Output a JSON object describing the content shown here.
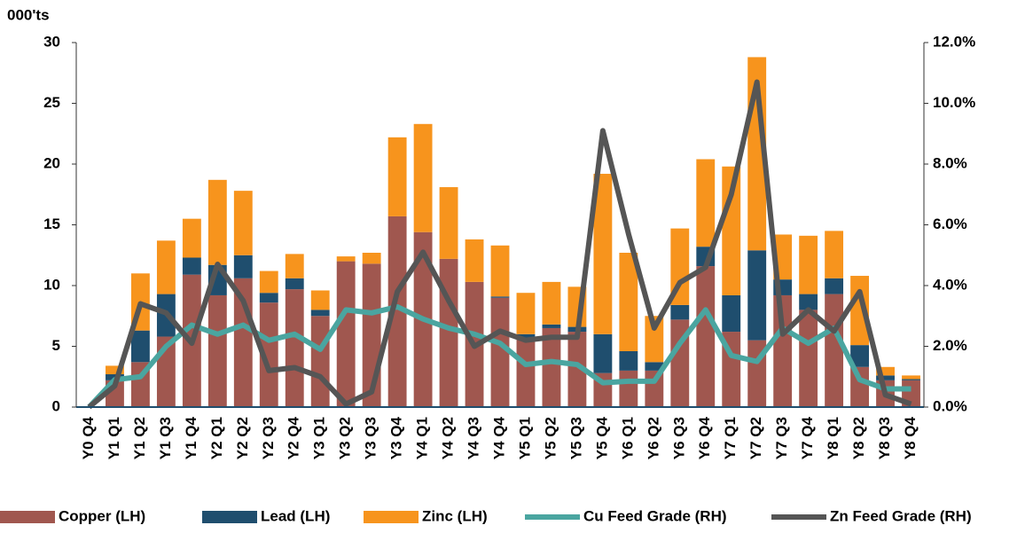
{
  "chart_data": {
    "type": "bar",
    "stacked": true,
    "y_axis_label": "000'ts",
    "categories": [
      "Y0 Q4",
      "Y1 Q1",
      "Y1 Q2",
      "Y1 Q3",
      "Y1 Q4",
      "Y2 Q1",
      "Y2 Q2",
      "Y2 Q3",
      "Y2 Q4",
      "Y3 Q1",
      "Y3 Q2",
      "Y3 Q3",
      "Y3 Q4",
      "Y4 Q1",
      "Y4 Q2",
      "Y4 Q3",
      "Y4 Q4",
      "Y5 Q1",
      "Y5 Q2",
      "Y5 Q3",
      "Y5 Q4",
      "Y6 Q1",
      "Y6 Q2",
      "Y6 Q3",
      "Y6 Q4",
      "Y7 Q1",
      "Y7 Q2",
      "Y7 Q3",
      "Y7 Q4",
      "Y8 Q1",
      "Y8 Q2",
      "Y8 Q3",
      "Y8 Q4"
    ],
    "series": [
      {
        "name": "Copper (LH)",
        "type": "bar",
        "color": "#a0574f",
        "values": [
          0,
          2.2,
          3.7,
          5.8,
          10.9,
          9.2,
          10.6,
          8.6,
          9.7,
          7.5,
          12.0,
          11.8,
          15.7,
          14.4,
          12.2,
          10.3,
          9.0,
          5.6,
          6.5,
          6.2,
          2.8,
          3.0,
          3.0,
          7.2,
          11.6,
          6.2,
          5.5,
          9.2,
          8.0,
          9.3,
          3.3,
          2.2,
          2.2
        ]
      },
      {
        "name": "Lead (LH)",
        "type": "bar",
        "color": "#1f4e6e",
        "values": [
          0,
          0.5,
          2.6,
          3.5,
          1.4,
          2.5,
          1.9,
          0.8,
          0.9,
          0.5,
          0,
          0,
          0,
          0,
          0,
          0,
          0.1,
          0.4,
          0.3,
          0.4,
          3.2,
          1.6,
          0.7,
          1.2,
          1.6,
          3.0,
          7.4,
          1.3,
          1.3,
          1.3,
          1.8,
          0.4,
          0.1
        ]
      },
      {
        "name": "Zinc (LH)",
        "type": "bar",
        "color": "#f7941d",
        "values": [
          0,
          0.7,
          4.7,
          4.4,
          3.2,
          7.0,
          5.3,
          1.8,
          2.0,
          1.6,
          0.4,
          0.9,
          6.5,
          8.9,
          5.9,
          3.5,
          4.2,
          3.4,
          3.5,
          3.3,
          13.2,
          8.1,
          3.8,
          6.3,
          7.2,
          10.6,
          15.9,
          3.7,
          4.8,
          3.9,
          5.7,
          0.7,
          0.3
        ]
      },
      {
        "name": "Cu Feed Grade (RH)",
        "type": "line",
        "axis": "y2",
        "color": "#4aa5a0",
        "values": [
          0,
          0.9,
          1.0,
          2.0,
          2.7,
          2.4,
          2.7,
          2.2,
          2.4,
          1.9,
          3.2,
          3.1,
          3.3,
          2.9,
          2.6,
          2.4,
          2.1,
          1.4,
          1.5,
          1.4,
          0.8,
          0.85,
          0.85,
          2.1,
          3.2,
          1.7,
          1.5,
          2.6,
          2.1,
          2.6,
          0.9,
          0.6,
          0.6
        ]
      },
      {
        "name": "Zn Feed Grade (RH)",
        "type": "line",
        "axis": "y2",
        "color": "#555555",
        "values": [
          0,
          0.7,
          3.4,
          3.1,
          2.1,
          4.7,
          3.5,
          1.2,
          1.3,
          1.0,
          0.1,
          0.5,
          3.8,
          5.1,
          3.5,
          2.0,
          2.5,
          2.2,
          2.3,
          2.3,
          9.1,
          5.7,
          2.6,
          4.1,
          4.6,
          7.0,
          10.7,
          2.4,
          3.2,
          2.5,
          3.8,
          0.4,
          0.1
        ]
      }
    ],
    "ylim": [
      0,
      30
    ],
    "yticks": [
      0,
      5,
      10,
      15,
      20,
      25,
      30
    ],
    "y2lim": [
      0,
      12
    ],
    "y2ticks": [
      {
        "value": 0,
        "label": "0.0%"
      },
      {
        "value": 2,
        "label": "2.0%"
      },
      {
        "value": 4,
        "label": "4.0%"
      },
      {
        "value": 6,
        "label": "6.0%"
      },
      {
        "value": 8,
        "label": "8.0%"
      },
      {
        "value": 10,
        "label": "10.0%"
      },
      {
        "value": 12,
        "label": "12.0%"
      }
    ],
    "legend": "bottom",
    "grid": false
  }
}
